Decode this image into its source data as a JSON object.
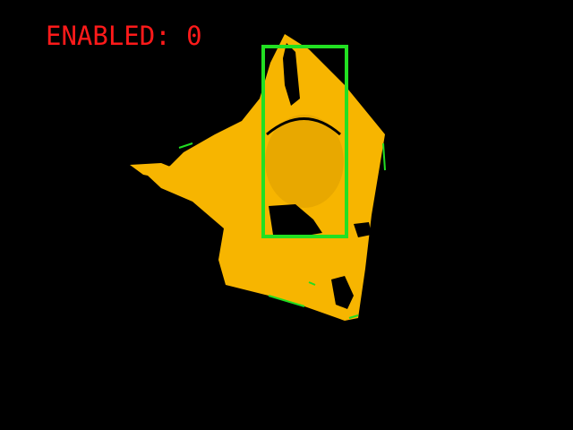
{
  "status": {
    "label": "ENABLED: 0",
    "color": "#ff1a1a"
  },
  "object": {
    "icon": "traffic-cone-mask",
    "fill_color": "#f7b500",
    "shade_color": "#e8a800",
    "edge_color": "#22dd22"
  },
  "detection_box": {
    "color": "#22e022"
  }
}
